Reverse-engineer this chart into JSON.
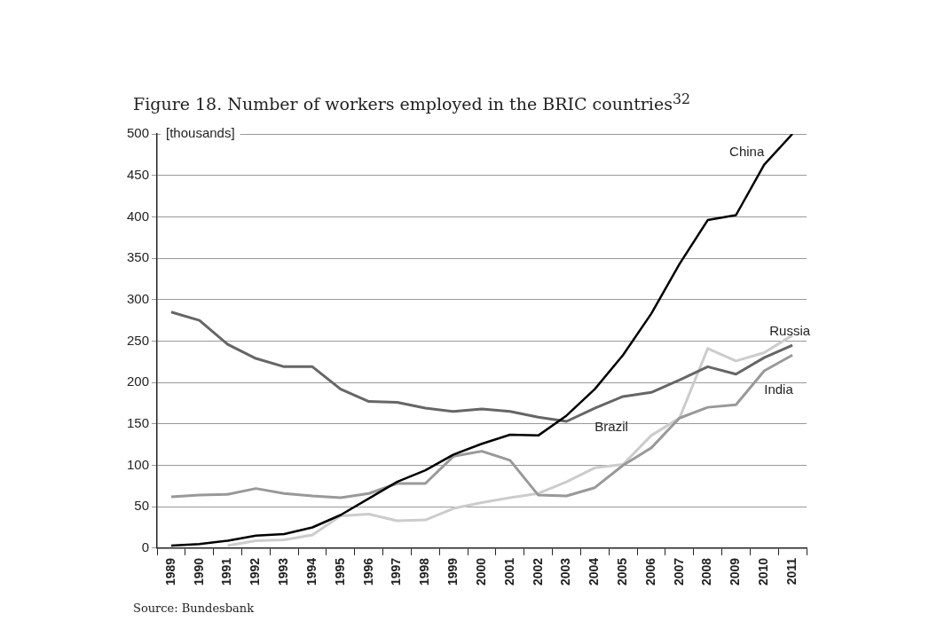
{
  "chart_data": {
    "type": "line",
    "title": "Figure 18. Number of workers employed in the BRIC countries$^{32}$",
    "ylabel": "[thousands]",
    "categories": [
      "1989",
      "1990",
      "1991",
      "1992",
      "1993",
      "1994",
      "1995",
      "1996",
      "1997",
      "1998",
      "1999",
      "2000",
      "2001",
      "2002",
      "2003",
      "2004",
      "2005",
      "2006",
      "2007",
      "2008",
      "2009",
      "2010",
      "2011"
    ],
    "series": [
      {
        "name": "China",
        "color": "#000000",
        "values": [
          3,
          5,
          9,
          15,
          17,
          25,
          40,
          60,
          80,
          94,
          113,
          126,
          137,
          136,
          160,
          192,
          233,
          283,
          343,
          396,
          402,
          463,
          500
        ]
      },
      {
        "name": "Brazil",
        "color": "#666666",
        "values": [
          285,
          275,
          246,
          229,
          219,
          219,
          192,
          177,
          176,
          169,
          165,
          168,
          165,
          158,
          153,
          169,
          183,
          188,
          203,
          219,
          210,
          230,
          245
        ]
      },
      {
        "name": "India",
        "color": "#999999",
        "values": [
          62,
          64,
          65,
          72,
          66,
          63,
          61,
          66,
          78,
          78,
          111,
          117,
          106,
          64,
          63,
          73,
          100,
          121,
          157,
          170,
          173,
          214,
          233
        ]
      },
      {
        "name": "Russia",
        "color": "#cccccc",
        "values": [
          null,
          null,
          3,
          9,
          10,
          16,
          39,
          41,
          33,
          34,
          48,
          55,
          61,
          66,
          80,
          97,
          101,
          136,
          157,
          241,
          226,
          236,
          257
        ]
      }
    ],
    "ylim": [
      0,
      500
    ],
    "yticks": [
      0,
      50,
      100,
      150,
      200,
      250,
      300,
      350,
      400,
      450,
      500
    ],
    "grid": "y",
    "legend": false,
    "marker": "none",
    "line_style": "solid",
    "annotations": [
      "Source: Bundesbank"
    ]
  }
}
